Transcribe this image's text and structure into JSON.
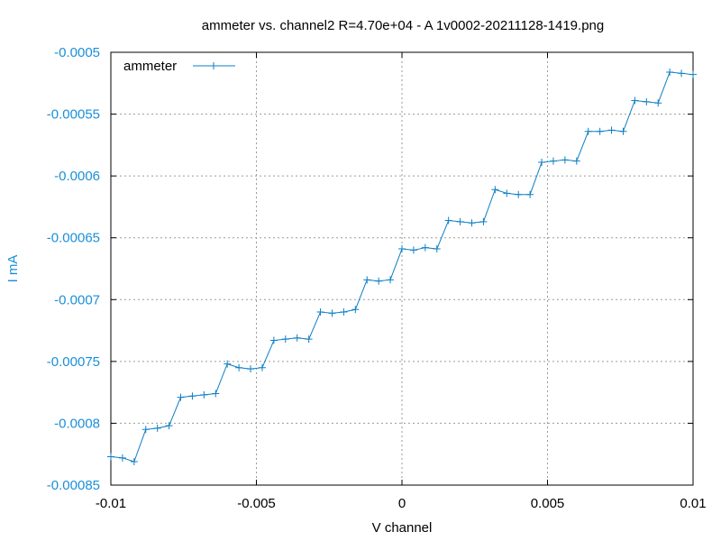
{
  "chart_data": {
    "type": "line",
    "title": "ammeter vs. channel2 R=4.70e+04 - A 1v0002-20211128-1419.png",
    "xlabel": "V channel",
    "ylabel": "I mA",
    "xlim": [
      -0.01,
      0.01
    ],
    "ylim": [
      -0.00085,
      -0.0005
    ],
    "x_ticks": [
      "-0.01",
      "-0.005",
      "0",
      "0.005",
      "0.01"
    ],
    "y_ticks": [
      "-0.0005",
      "-0.00055",
      "-0.0006",
      "-0.00065",
      "-0.0007",
      "-0.00075",
      "-0.0008",
      "-0.00085"
    ],
    "grid": true,
    "legend_position": "top-left",
    "colors": {
      "series": "#0e7fc4",
      "ylabel": "#1a8fd8",
      "grid": "#9a9a9a",
      "axes": "#000000"
    },
    "series": [
      {
        "name": "ammeter",
        "marker": "plus",
        "x": [
          -0.01,
          -0.0096,
          -0.0092,
          -0.0088,
          -0.0084,
          -0.008,
          -0.0076,
          -0.0072,
          -0.0068,
          -0.0064,
          -0.006,
          -0.0056,
          -0.0052,
          -0.0048,
          -0.0044,
          -0.004,
          -0.0036,
          -0.0032,
          -0.0028,
          -0.0024,
          -0.002,
          -0.0016,
          -0.0012,
          -0.0008,
          -0.0004,
          0.0,
          0.0004,
          0.0008,
          0.0012,
          0.0016,
          0.002,
          0.0024,
          0.0028,
          0.0032,
          0.0036,
          0.004,
          0.0044,
          0.0048,
          0.0052,
          0.0056,
          0.006,
          0.0064,
          0.0068,
          0.0072,
          0.0076,
          0.008,
          0.0084,
          0.0088,
          0.0092,
          0.0096,
          0.01
        ],
        "y": [
          -0.000827,
          -0.000828,
          -0.000831,
          -0.000805,
          -0.000804,
          -0.000802,
          -0.000779,
          -0.000778,
          -0.000777,
          -0.000776,
          -0.000752,
          -0.000755,
          -0.000756,
          -0.000755,
          -0.000733,
          -0.000732,
          -0.000731,
          -0.000732,
          -0.00071,
          -0.000711,
          -0.00071,
          -0.000708,
          -0.000684,
          -0.000685,
          -0.000684,
          -0.000659,
          -0.00066,
          -0.000658,
          -0.000659,
          -0.000636,
          -0.000637,
          -0.000638,
          -0.000637,
          -0.000611,
          -0.000614,
          -0.000615,
          -0.000615,
          -0.000589,
          -0.000588,
          -0.000587,
          -0.000588,
          -0.000564,
          -0.000564,
          -0.000563,
          -0.000564,
          -0.000539,
          -0.00054,
          -0.000541,
          -0.000516,
          -0.000517,
          -0.000518
        ]
      }
    ]
  }
}
